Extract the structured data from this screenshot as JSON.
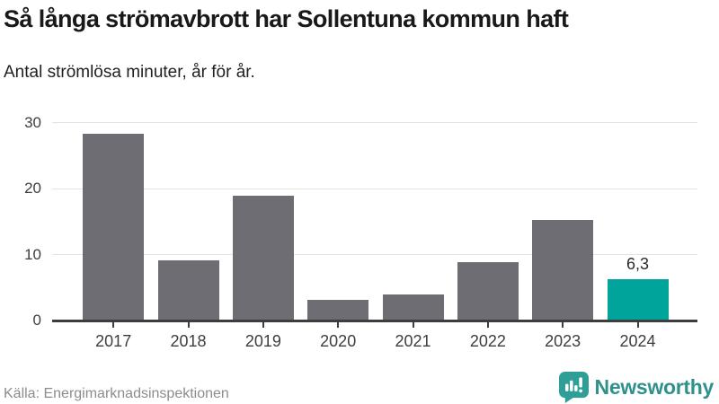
{
  "header": {
    "title": "Så långa strömavbrott har Sollentuna kommun haft",
    "subtitle": "Antal strömlösa minuter, år för år."
  },
  "chart_data": {
    "type": "bar",
    "title": "Så långa strömavbrott har Sollentuna kommun haft",
    "subtitle": "Antal strömlösa minuter, år för år.",
    "categories": [
      "2017",
      "2018",
      "2019",
      "2020",
      "2021",
      "2022",
      "2023",
      "2024"
    ],
    "values": [
      28.3,
      9.1,
      18.9,
      3.1,
      3.9,
      8.9,
      15.3,
      6.3
    ],
    "highlight": {
      "index": 7,
      "label": "6,3"
    },
    "xlabel": "",
    "ylabel": "",
    "ylim": [
      0,
      30
    ],
    "yticks": [
      0,
      10,
      20,
      30
    ],
    "grid": true,
    "legend": "none",
    "bar_color": "#6e6d74",
    "highlight_color": "#00a49a"
  },
  "colors": {
    "grid": "#e3e3e3",
    "axis": "#3d3d3d",
    "title": "#191919",
    "source_text": "#8c8c8c",
    "brand": "#2e918c"
  },
  "footer": {
    "source": "Källa: Energimarknadsinspektionen",
    "brand": "Newsworthy",
    "logo_icon": "speech-bubble-bar-chart-icon"
  }
}
